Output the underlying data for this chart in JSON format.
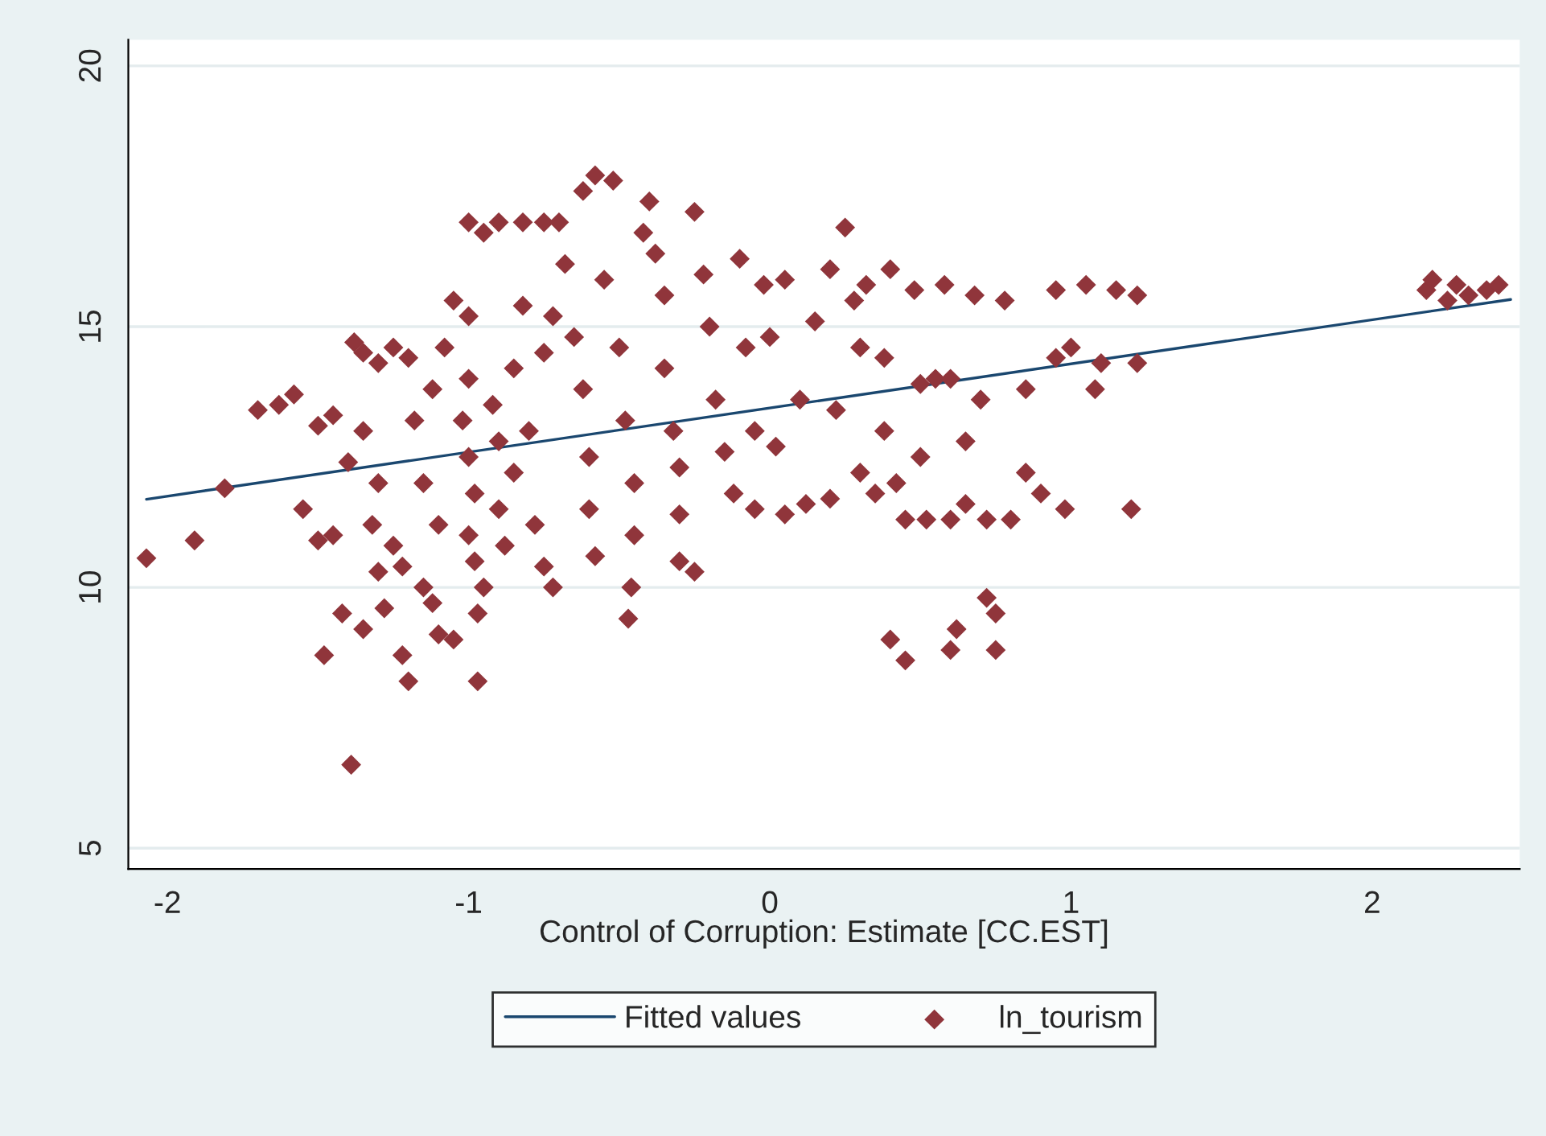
{
  "chart_data": {
    "type": "scatter",
    "xlabel": "Control of Corruption: Estimate [CC.EST]",
    "xlim": [
      -2.13,
      2.49
    ],
    "ylim": [
      4.6,
      20.5
    ],
    "xticks": [
      -2,
      -1,
      0,
      1,
      2
    ],
    "yticks": [
      5,
      10,
      15,
      20
    ],
    "grid": "y",
    "legend": "bottom",
    "series": [
      {
        "name": "Fitted values",
        "type": "line",
        "color": "#1a476f",
        "line_style": "solid",
        "x": [
          -2.07,
          2.46
        ],
        "values": [
          11.69,
          15.52
        ]
      },
      {
        "name": "ln_tourism",
        "marker": "diamond",
        "color": "#90353b",
        "x": [
          -1.55,
          -1.5,
          -1.45,
          -1.5,
          -1.45,
          -1.4,
          -1.38,
          -1.35,
          -1.3,
          -1.25,
          -1.2,
          -1.35,
          -1.3,
          -1.32,
          -1.3,
          -1.25,
          -1.22,
          -1.28,
          -1.35,
          -1.42,
          -1.48,
          -1.2,
          -1.22,
          -1.12,
          -1.15,
          -1.1,
          -1.05,
          -1.1,
          -1.15,
          -1.18,
          -1.12,
          -1.08,
          -1.05,
          -1.0,
          -1.0,
          -1.02,
          -1.0,
          -0.98,
          -1.0,
          -0.98,
          -0.95,
          -0.97,
          -0.97,
          -1.0,
          -0.95,
          -0.9,
          -0.82,
          -0.75,
          -0.7,
          -0.92,
          -0.9,
          -0.9,
          -0.88,
          -0.85,
          -0.85,
          -0.82,
          -0.8,
          -0.78,
          -0.75,
          -0.72,
          -0.75,
          -0.72,
          -0.68,
          -0.65,
          -0.62,
          -0.6,
          -0.6,
          -0.58,
          -0.62,
          -0.58,
          -0.52,
          -0.55,
          -0.5,
          -0.48,
          -0.45,
          -0.45,
          -0.46,
          -0.47,
          -0.4,
          -0.42,
          -0.38,
          -0.35,
          -0.35,
          -0.32,
          -0.3,
          -0.3,
          -0.3,
          -0.25,
          -0.25,
          -0.22,
          -0.2,
          -0.18,
          -0.15,
          -0.12,
          -0.1,
          -0.08,
          -0.05,
          -0.05,
          -0.02,
          0.0,
          0.02,
          0.05,
          0.05,
          0.1,
          0.12,
          0.15,
          0.2,
          0.2,
          0.22,
          0.25,
          0.28,
          0.3,
          0.3,
          0.32,
          0.35,
          0.38,
          0.38,
          0.4,
          0.4,
          0.42,
          0.45,
          0.45,
          0.48,
          0.5,
          0.5,
          0.52,
          0.55,
          0.58,
          0.6,
          0.6,
          0.6,
          0.62,
          0.65,
          0.65,
          0.68,
          0.7,
          0.72,
          0.72,
          0.75,
          0.75,
          0.78,
          0.8,
          0.85,
          0.85,
          0.9,
          0.95,
          0.95,
          0.98,
          1.0,
          1.05,
          1.08,
          1.1,
          1.15,
          1.2,
          1.22,
          1.22,
          2.18,
          2.2,
          2.25,
          2.28,
          2.32,
          2.38,
          2.42,
          -1.63,
          -1.7,
          -1.58,
          -1.81,
          -1.91,
          -2.07,
          -1.39
        ],
        "values": [
          11.5,
          10.9,
          11.0,
          13.1,
          13.3,
          12.4,
          14.7,
          14.5,
          14.3,
          14.6,
          14.4,
          13.0,
          12.0,
          11.2,
          10.3,
          10.8,
          10.4,
          9.6,
          9.2,
          9.5,
          8.7,
          8.2,
          8.7,
          9.7,
          10.0,
          9.1,
          9.0,
          11.2,
          12.0,
          13.2,
          13.8,
          14.6,
          15.5,
          15.2,
          14.0,
          13.2,
          12.5,
          11.8,
          11.0,
          10.5,
          10.0,
          9.5,
          8.2,
          17.0,
          16.8,
          17.0,
          17.0,
          17.0,
          17.0,
          13.5,
          12.8,
          11.5,
          10.8,
          12.2,
          14.2,
          15.4,
          13.0,
          11.2,
          10.4,
          10.0,
          14.5,
          15.2,
          16.2,
          14.8,
          13.8,
          12.5,
          11.5,
          10.6,
          17.6,
          17.9,
          17.8,
          15.9,
          14.6,
          13.2,
          12.0,
          11.0,
          10.0,
          9.4,
          17.4,
          16.8,
          16.4,
          15.6,
          14.2,
          13.0,
          12.3,
          11.4,
          10.5,
          10.3,
          17.2,
          16.0,
          15.0,
          13.6,
          12.6,
          11.8,
          16.3,
          14.6,
          13.0,
          11.5,
          15.8,
          14.8,
          12.7,
          11.4,
          15.9,
          13.6,
          11.6,
          15.1,
          16.1,
          11.7,
          13.4,
          16.9,
          15.5,
          14.6,
          12.2,
          15.8,
          11.8,
          14.4,
          13.0,
          16.1,
          9.0,
          12.0,
          11.3,
          8.6,
          15.7,
          13.9,
          12.5,
          11.3,
          14.0,
          15.8,
          14.0,
          11.3,
          8.8,
          9.2,
          12.8,
          11.6,
          15.6,
          13.6,
          11.3,
          9.8,
          9.5,
          8.8,
          15.5,
          11.3,
          13.8,
          12.2,
          11.8,
          15.7,
          14.4,
          11.5,
          14.6,
          15.8,
          13.8,
          14.3,
          15.7,
          11.5,
          15.6,
          14.3,
          15.7,
          15.9,
          15.5,
          15.8,
          15.6,
          15.7,
          15.8,
          13.5,
          13.4,
          13.7,
          11.9,
          10.9,
          10.56,
          6.6
        ]
      }
    ]
  }
}
